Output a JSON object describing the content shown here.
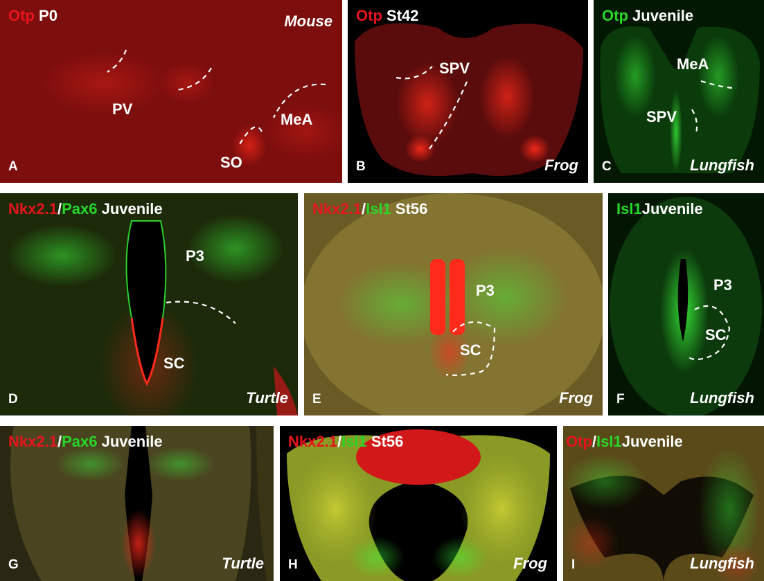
{
  "colors": {
    "red_stain": "#e8141c",
    "green_stain": "#27d627",
    "label": "#ffffff"
  },
  "panels": {
    "A": {
      "letter": "A",
      "marker1": "Otp",
      "stage": "P0",
      "species": "Mouse",
      "regions": [
        "PV",
        "MeA",
        "SO"
      ]
    },
    "B": {
      "letter": "B",
      "marker1": "Otp",
      "stage": "St42",
      "species": "Frog",
      "regions": [
        "SPV"
      ]
    },
    "C": {
      "letter": "C",
      "marker1": "Otp",
      "stage": "Juvenile",
      "species": "Lungfish",
      "regions": [
        "MeA",
        "SPV"
      ]
    },
    "D": {
      "letter": "D",
      "marker1": "Nkx2.1",
      "sep": "/",
      "marker2": "Pax6",
      "stage": "Juvenile",
      "species": "Turtle",
      "regions": [
        "P3",
        "SC"
      ]
    },
    "E": {
      "letter": "E",
      "marker1": "Nkx2.1",
      "sep": "/",
      "marker2": "Isl1",
      "stage": "St56",
      "species": "Frog",
      "regions": [
        "P3",
        "SC"
      ]
    },
    "F": {
      "letter": "F",
      "marker1": "Isl1",
      "stage": "Juvenile",
      "species": "Lungfish",
      "regions": [
        "P3",
        "SC"
      ]
    },
    "G": {
      "letter": "G",
      "marker1": "Nkx2.1",
      "sep": "/",
      "marker2": "Pax6",
      "stage": "Juvenile",
      "species": "Turtle"
    },
    "H": {
      "letter": "H",
      "marker1": "Nkx2.1",
      "sep": "/",
      "marker2": "Isl1",
      "stage": "St56",
      "species": "Frog"
    },
    "I": {
      "letter": "I",
      "marker1": "Otp",
      "sep": "/",
      "marker2": "Isl1",
      "stage": "Juvenile",
      "species": "Lungfish"
    }
  }
}
